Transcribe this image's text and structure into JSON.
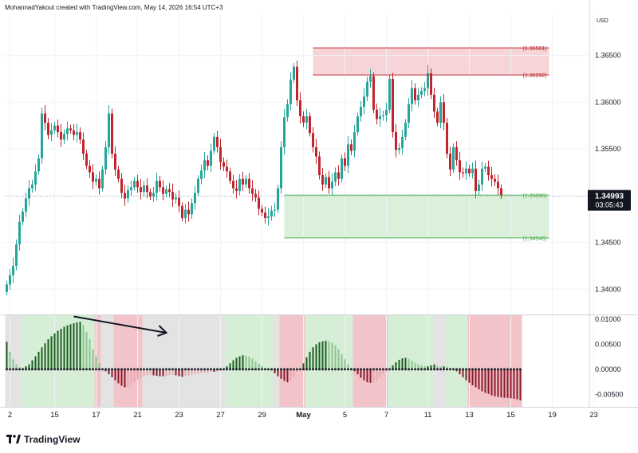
{
  "header": {
    "attribution": "MohannadYakout created with TradingView.com, May 14, 2026 16:54 UTC+3"
  },
  "brand": {
    "name": "TradingView",
    "icon": "tradingview-logo-icon"
  },
  "colors": {
    "up": "#26a69a",
    "down": "#c2252d",
    "osc_up_strong": "#1b5e20",
    "osc_up_weak": "#8bc48f",
    "osc_down_strong": "#8b1a2b",
    "osc_down_weak": "#e8a7b0",
    "zone_red": "#f2c4ca",
    "zone_green": "#d6eed6",
    "zone_gray": "#e3e3e3"
  },
  "chart_data": [
    {
      "type": "candlestick",
      "currency": "USD",
      "y_ticks": [
        1.34,
        1.345,
        1.35,
        1.355,
        1.36,
        1.365
      ],
      "y_tick_labels": [
        "1.34000",
        "1.34500",
        "1.35000",
        "1.35500",
        "1.36000",
        "1.36500"
      ],
      "ylim": [
        1.3373,
        1.3694
      ],
      "x_ticks": [
        {
          "label": "2",
          "bar": 1
        },
        {
          "label": "15",
          "bar": 15
        },
        {
          "label": "17",
          "bar": 28
        },
        {
          "label": "21",
          "bar": 41
        },
        {
          "label": "23",
          "bar": 54
        },
        {
          "label": "27",
          "bar": 67
        },
        {
          "label": "29",
          "bar": 80
        },
        {
          "label": "May",
          "bar": 93
        },
        {
          "label": "5",
          "bar": 106
        },
        {
          "label": "7",
          "bar": 119
        },
        {
          "label": "11",
          "bar": 132
        },
        {
          "label": "13",
          "bar": 145
        },
        {
          "label": "15",
          "bar": 158
        },
        {
          "label": "19",
          "bar": 171
        },
        {
          "label": "23",
          "bar": 184
        }
      ],
      "last_price": {
        "value": "1.34993",
        "countdown": "03:05:43"
      },
      "levels": [
        {
          "label": "(1.36581)",
          "value": 1.36581,
          "color": "#c2252d"
        },
        {
          "label": "(1.36292)",
          "value": 1.36292,
          "color": "#c2252d"
        },
        {
          "label": "(1.35006)",
          "value": 1.35006,
          "color": "#4caf50"
        },
        {
          "label": "(1.34548)",
          "value": 1.34548,
          "color": "#4caf50"
        }
      ],
      "zones": [
        {
          "name": "supply",
          "from_bar": 96,
          "to_bar": 170,
          "top": 1.36581,
          "bottom": 1.36292
        },
        {
          "name": "demand",
          "from_bar": 87,
          "to_bar": 170,
          "top": 1.35006,
          "bottom": 1.34548
        }
      ],
      "closes": [
        1.3405,
        1.3415,
        1.3425,
        1.3448,
        1.3472,
        1.3483,
        1.3497,
        1.3508,
        1.3512,
        1.3526,
        1.354,
        1.3588,
        1.3578,
        1.3565,
        1.357,
        1.3575,
        1.3568,
        1.356,
        1.3566,
        1.3572,
        1.357,
        1.3565,
        1.3568,
        1.356,
        1.3545,
        1.3532,
        1.3525,
        1.3515,
        1.3518,
        1.3508,
        1.3528,
        1.3552,
        1.3588,
        1.3545,
        1.3528,
        1.3518,
        1.3503,
        1.3497,
        1.3506,
        1.3509,
        1.3516,
        1.3509,
        1.3504,
        1.3511,
        1.3504,
        1.3499,
        1.3503,
        1.3516,
        1.3509,
        1.3502,
        1.3507,
        1.3504,
        1.3496,
        1.3498,
        1.3489,
        1.3476,
        1.3485,
        1.348,
        1.3492,
        1.3503,
        1.3518,
        1.3527,
        1.3538,
        1.3532,
        1.3548,
        1.3563,
        1.3552,
        1.3536,
        1.3531,
        1.3526,
        1.3516,
        1.3508,
        1.3505,
        1.3518,
        1.3512,
        1.3518,
        1.3508,
        1.3502,
        1.3498,
        1.3486,
        1.3482,
        1.3476,
        1.3478,
        1.3484,
        1.3485,
        1.3508,
        1.3552,
        1.3584,
        1.3598,
        1.3624,
        1.3638,
        1.3602,
        1.3585,
        1.3578,
        1.3585,
        1.3567,
        1.3552,
        1.3542,
        1.3522,
        1.3512,
        1.352,
        1.3508,
        1.3515,
        1.3525,
        1.3518,
        1.354,
        1.3532,
        1.3555,
        1.3548,
        1.3568,
        1.3585,
        1.3595,
        1.3606,
        1.3622,
        1.3628,
        1.3592,
        1.3582,
        1.3585,
        1.3586,
        1.3592,
        1.3625,
        1.3568,
        1.3549,
        1.3551,
        1.3563,
        1.3578,
        1.3598,
        1.3615,
        1.3602,
        1.3608,
        1.3612,
        1.3615,
        1.3631,
        1.3608,
        1.359,
        1.3578,
        1.36,
        1.3578,
        1.3545,
        1.3528,
        1.3552,
        1.3538,
        1.3525,
        1.3524,
        1.3529,
        1.3524,
        1.3529,
        1.3505,
        1.3512,
        1.3529,
        1.3531,
        1.3522,
        1.3518,
        1.3515,
        1.3508,
        1.35
      ]
    },
    {
      "type": "histogram",
      "y_ticks": [
        0.01,
        0.005,
        0,
        -0.005
      ],
      "y_tick_labels": [
        "0.01000",
        "0.00500",
        "0.00000",
        "-0.00500"
      ],
      "ylim": [
        -0.0075,
        0.0108
      ],
      "background_segments": [
        {
          "from_bar": 0,
          "to_bar": 4,
          "state": "gray"
        },
        {
          "from_bar": 5,
          "to_bar": 27,
          "state": "green"
        },
        {
          "from_bar": 28,
          "to_bar": 29,
          "state": "red"
        },
        {
          "from_bar": 30,
          "to_bar": 33,
          "state": "gray"
        },
        {
          "from_bar": 34,
          "to_bar": 42,
          "state": "red"
        },
        {
          "from_bar": 43,
          "to_bar": 68,
          "state": "gray"
        },
        {
          "from_bar": 69,
          "to_bar": 83,
          "state": "green"
        },
        {
          "from_bar": 84,
          "to_bar": 85,
          "state": "gray"
        },
        {
          "from_bar": 86,
          "to_bar": 93,
          "state": "red"
        },
        {
          "from_bar": 94,
          "to_bar": 108,
          "state": "green"
        },
        {
          "from_bar": 109,
          "to_bar": 119,
          "state": "red"
        },
        {
          "from_bar": 120,
          "to_bar": 133,
          "state": "green"
        },
        {
          "from_bar": 134,
          "to_bar": 137,
          "state": "gray"
        },
        {
          "from_bar": 138,
          "to_bar": 144,
          "state": "green"
        },
        {
          "from_bar": 145,
          "to_bar": 161,
          "state": "red"
        }
      ],
      "values": [
        0.0055,
        0.0035,
        0.002,
        0.001,
        0.0004,
        0.0003,
        0.0006,
        0.001,
        0.0018,
        0.0026,
        0.0035,
        0.0044,
        0.0052,
        0.006,
        0.0066,
        0.0072,
        0.0077,
        0.0081,
        0.0085,
        0.0088,
        0.009,
        0.0092,
        0.0094,
        0.0095,
        0.0088,
        0.0075,
        0.006,
        0.004,
        0.0025,
        0.0012,
        0.0002,
        -0.0004,
        -0.001,
        -0.0016,
        -0.0022,
        -0.0028,
        -0.0033,
        -0.0036,
        -0.0035,
        -0.0031,
        -0.0026,
        -0.002,
        -0.0017,
        -0.0014,
        -0.0012,
        -0.0011,
        -0.0012,
        -0.0013,
        -0.0014,
        -0.0014,
        -0.0013,
        -0.0012,
        -0.0011,
        -0.0012,
        -0.0014,
        -0.0015,
        -0.0014,
        -0.0013,
        -0.0011,
        -0.001,
        -0.0009,
        -0.0008,
        -0.0007,
        -0.0006,
        -0.0005,
        -0.0005,
        -0.0004,
        -0.0003,
        -0.0002,
        0.0006,
        0.0012,
        0.0018,
        0.0023,
        0.0026,
        0.0028,
        0.0027,
        0.0025,
        0.0021,
        0.0016,
        0.0011,
        0.0007,
        0.0003,
        0.0001,
        -0.0002,
        -0.0008,
        -0.0014,
        -0.0019,
        -0.0023,
        -0.0026,
        -0.0022,
        -0.0015,
        -0.0005,
        0.0002,
        0.0012,
        0.0024,
        0.0035,
        0.0044,
        0.005,
        0.0054,
        0.0056,
        0.0057,
        0.0056,
        0.0053,
        0.0048,
        0.004,
        0.003,
        0.002,
        0.001,
        0.0003,
        -0.0004,
        -0.001,
        -0.0017,
        -0.0022,
        -0.0026,
        -0.0027,
        -0.0026,
        -0.0022,
        -0.0016,
        -0.001,
        -0.0004,
        0.0002,
        0.0008,
        0.0014,
        0.0019,
        0.0022,
        0.0023,
        0.0021,
        0.0017,
        0.0013,
        0.001,
        0.0008,
        0.0006,
        0.0006,
        0.0008,
        0.001,
        0.0007,
        0.0005,
        0.0006,
        0.0005,
        0.0003,
        0.0001,
        -0.0004,
        -0.001,
        -0.0016,
        -0.0022,
        -0.0027,
        -0.0032,
        -0.0036,
        -0.004,
        -0.0044,
        -0.0047,
        -0.0049,
        -0.0052,
        -0.0054,
        -0.0055,
        -0.0056,
        -0.0057,
        -0.0057,
        -0.0058,
        -0.0059,
        -0.006,
        -0.0062
      ]
    }
  ]
}
